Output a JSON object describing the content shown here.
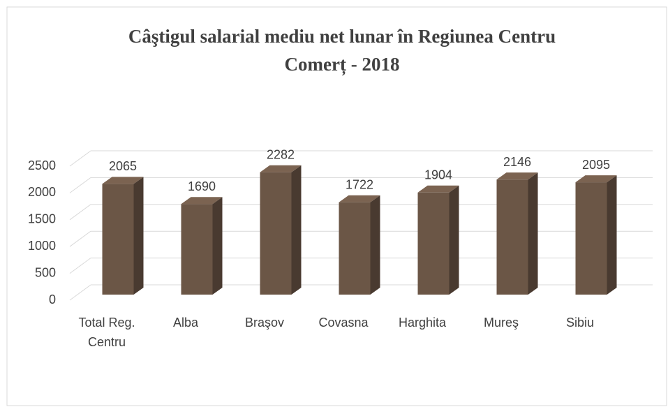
{
  "chart_data": {
    "type": "bar3d",
    "title": "Câştigul salarial mediu net lunar în Regiunea Centru",
    "subtitle": "Comerț - 2018",
    "categories": [
      "Total Reg. Centru",
      "Alba",
      "Braşov",
      "Covasna",
      "Harghita",
      "Mureş",
      "Sibiu"
    ],
    "values": [
      2065,
      1690,
      2282,
      1722,
      1904,
      2146,
      2095
    ],
    "color": "#6b5646",
    "ylim": [
      0,
      2500
    ],
    "yticks": [
      0,
      500,
      1000,
      1500,
      2000,
      2500
    ],
    "grid": true
  }
}
